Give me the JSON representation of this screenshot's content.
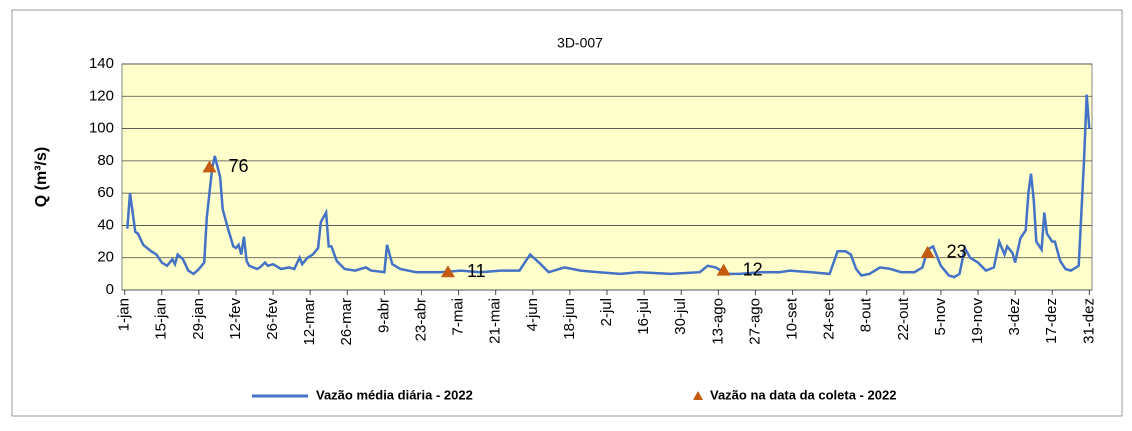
{
  "chart_data": {
    "type": "line",
    "title": "3D-007",
    "ylabel": "Q (m³/s)",
    "xlim": [
      0,
      366
    ],
    "ylim": [
      0,
      140
    ],
    "yticks": [
      0,
      20,
      40,
      60,
      80,
      100,
      120,
      140
    ],
    "grid": true,
    "legend": "bottom",
    "xticks": [
      {
        "value": 1,
        "label": "1-jan"
      },
      {
        "value": 15,
        "label": "15-jan"
      },
      {
        "value": 29,
        "label": "29-jan"
      },
      {
        "value": 43,
        "label": "12-fev"
      },
      {
        "value": 57,
        "label": "26-fev"
      },
      {
        "value": 71,
        "label": "12-mar"
      },
      {
        "value": 85,
        "label": "26-mar"
      },
      {
        "value": 99,
        "label": "9-abr"
      },
      {
        "value": 113,
        "label": "23-abr"
      },
      {
        "value": 127,
        "label": "7-mai"
      },
      {
        "value": 141,
        "label": "21-mai"
      },
      {
        "value": 155,
        "label": "4-jun"
      },
      {
        "value": 169,
        "label": "18-jun"
      },
      {
        "value": 183,
        "label": "2-jul"
      },
      {
        "value": 197,
        "label": "16-jul"
      },
      {
        "value": 211,
        "label": "30-jul"
      },
      {
        "value": 225,
        "label": "13-ago"
      },
      {
        "value": 239,
        "label": "27-ago"
      },
      {
        "value": 253,
        "label": "10-set"
      },
      {
        "value": 267,
        "label": "24-set"
      },
      {
        "value": 281,
        "label": "8-out"
      },
      {
        "value": 295,
        "label": "22-out"
      },
      {
        "value": 309,
        "label": "5-nov"
      },
      {
        "value": 323,
        "label": "19-nov"
      },
      {
        "value": 337,
        "label": "3-dez"
      },
      {
        "value": 351,
        "label": "17-dez"
      },
      {
        "value": 365,
        "label": "31-dez"
      }
    ],
    "series": [
      {
        "name": "Vazão média diária - 2022",
        "color": "#4472c4",
        "x": [
          2,
          3,
          5,
          6,
          8,
          11,
          13,
          15,
          17,
          19,
          20,
          21,
          23,
          25,
          27,
          29,
          31,
          32,
          34,
          35,
          37,
          38,
          40,
          42,
          43,
          44,
          45,
          46,
          47,
          48,
          51,
          52,
          54,
          55,
          57,
          60,
          63,
          65,
          67,
          68,
          70,
          72,
          74,
          75,
          77,
          78,
          79,
          81,
          84,
          88,
          92,
          94,
          99,
          100,
          102,
          105,
          111,
          120,
          128,
          135,
          143,
          150,
          154,
          158,
          161,
          163,
          167,
          173,
          180,
          188,
          195,
          207,
          218,
          221,
          224,
          228,
          233,
          241,
          248,
          252,
          260,
          267,
          270,
          273,
          275,
          277,
          279,
          282,
          286,
          290,
          294,
          299,
          302,
          304,
          306,
          307,
          309,
          312,
          314,
          316,
          318,
          320,
          323,
          326,
          329,
          331,
          333,
          334,
          336,
          337,
          339,
          341,
          342,
          343,
          344,
          345,
          347,
          348,
          349,
          351,
          352,
          354,
          356,
          358,
          361,
          363,
          364,
          365
        ],
        "values": [
          38,
          60,
          36,
          35,
          28,
          24,
          22,
          17,
          15,
          19,
          16,
          22,
          19,
          12,
          10,
          13,
          17,
          45,
          75,
          83,
          70,
          50,
          38,
          27,
          26,
          28,
          22,
          33,
          18,
          15,
          13,
          14,
          17,
          15,
          16,
          13,
          14,
          13,
          20,
          16,
          20,
          22,
          26,
          42,
          48,
          27,
          27,
          18,
          13,
          12,
          14,
          12,
          11,
          28,
          16,
          13,
          11,
          11,
          12,
          11,
          12,
          12,
          22,
          16,
          11,
          12,
          14,
          12,
          11,
          10,
          11,
          10,
          11,
          15,
          14,
          10,
          10,
          11,
          11,
          12,
          11,
          10,
          24,
          24,
          22,
          13,
          9,
          10,
          14,
          13,
          11,
          11,
          14,
          25,
          27,
          23,
          15,
          9,
          8,
          10,
          26,
          20,
          17,
          12,
          14,
          30,
          22,
          27,
          23,
          17,
          32,
          37,
          60,
          72,
          56,
          30,
          25,
          48,
          35,
          30,
          30,
          18,
          13,
          12,
          15,
          80,
          121,
          100
        ]
      },
      {
        "name": "Vazão na data da coleta - 2022",
        "color": "#c55a11",
        "marker": "triangle",
        "x": [
          33,
          123,
          227,
          304
        ],
        "values": [
          76,
          11,
          12,
          23
        ]
      }
    ]
  }
}
